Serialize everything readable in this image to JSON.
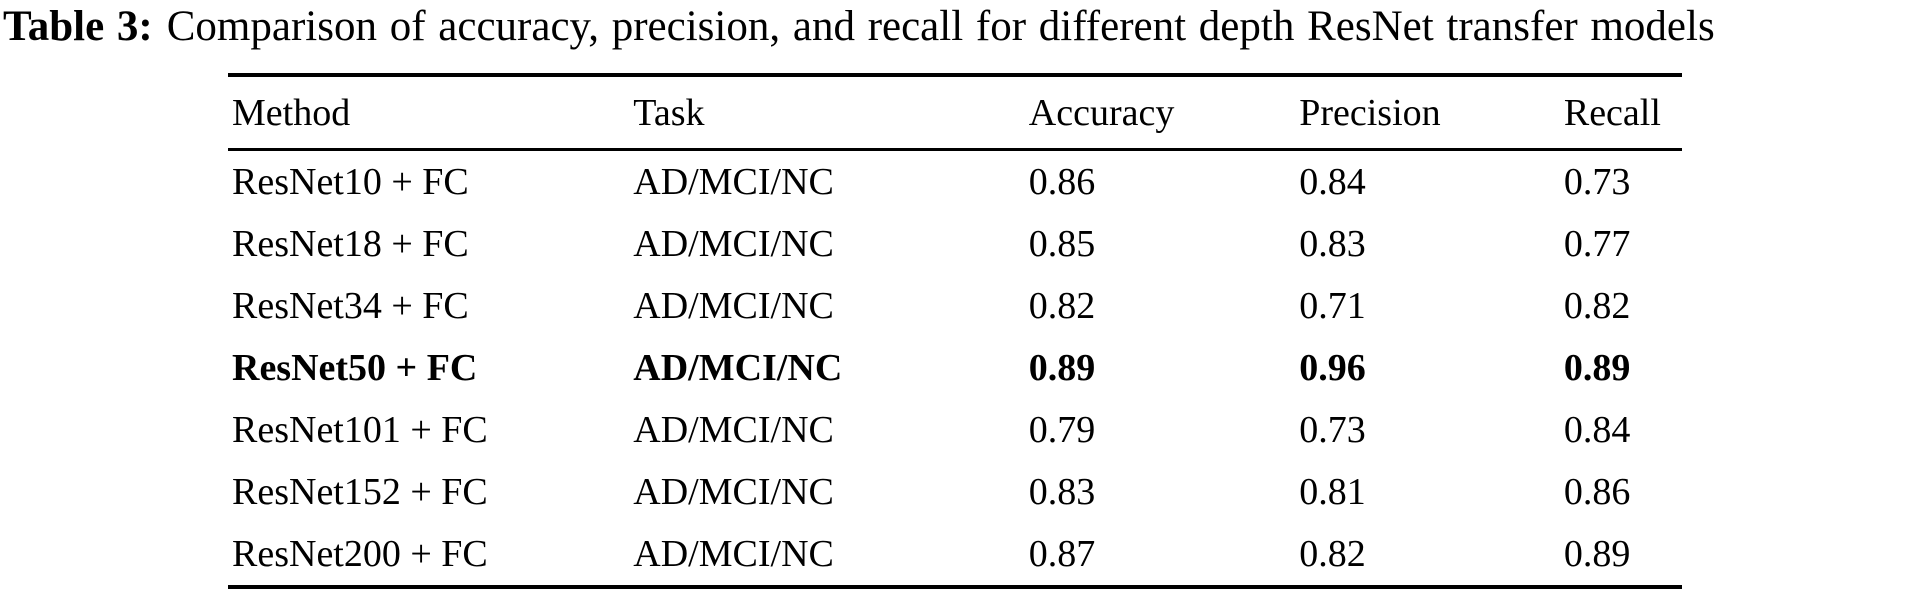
{
  "caption": {
    "label": "Table 3:",
    "text": "Comparison of accuracy, precision, and recall for different depth ResNet transfer models"
  },
  "chart_data": {
    "type": "table",
    "title": "Table 3: Comparison of accuracy, precision, and recall for different depth ResNet transfer models",
    "columns": [
      "Method",
      "Task",
      "Accuracy",
      "Precision",
      "Recall"
    ],
    "rows": [
      {
        "method": "ResNet10 + FC",
        "task": "AD/MCI/NC",
        "accuracy": "0.86",
        "precision": "0.84",
        "recall": "0.73",
        "bold": false
      },
      {
        "method": "ResNet18 + FC",
        "task": "AD/MCI/NC",
        "accuracy": "0.85",
        "precision": "0.83",
        "recall": "0.77",
        "bold": false
      },
      {
        "method": "ResNet34 + FC",
        "task": "AD/MCI/NC",
        "accuracy": "0.82",
        "precision": "0.71",
        "recall": "0.82",
        "bold": false
      },
      {
        "method": "ResNet50 + FC",
        "task": "AD/MCI/NC",
        "accuracy": "0.89",
        "precision": "0.96",
        "recall": "0.89",
        "bold": true
      },
      {
        "method": "ResNet101 + FC",
        "task": "AD/MCI/NC",
        "accuracy": "0.79",
        "precision": "0.73",
        "recall": "0.84",
        "bold": false
      },
      {
        "method": "ResNet152 + FC",
        "task": "AD/MCI/NC",
        "accuracy": "0.83",
        "precision": "0.81",
        "recall": "0.86",
        "bold": false
      },
      {
        "method": "ResNet200 + FC",
        "task": "AD/MCI/NC",
        "accuracy": "0.87",
        "precision": "0.82",
        "recall": "0.89",
        "bold": false
      }
    ],
    "highlighted_row": "ResNet50 + FC",
    "text_color": "#000000",
    "background_color": "#ffffff"
  }
}
